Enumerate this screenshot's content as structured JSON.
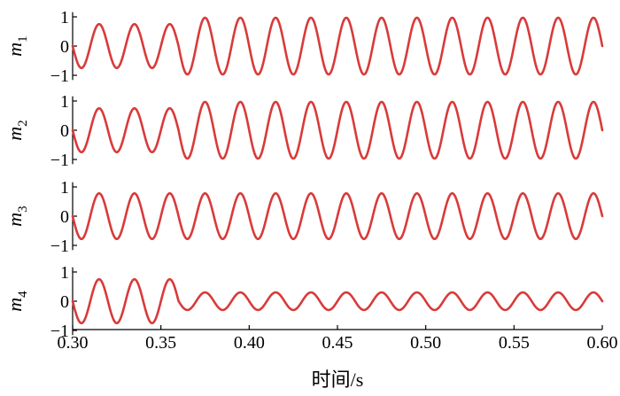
{
  "chart_data": {
    "type": "line",
    "color": "#d93a3a",
    "x_range": [
      0.3,
      0.6
    ],
    "x_ticks": [
      0.3,
      0.35,
      0.4,
      0.45,
      0.5,
      0.55,
      0.6
    ],
    "x_tick_labels": [
      "0.30",
      "0.35",
      "0.40",
      "0.45",
      "0.50",
      "0.55",
      "0.60"
    ],
    "xlabel": "时间/s",
    "y_ticks": [
      1,
      0,
      -1
    ],
    "y_tick_labels": [
      "1",
      "0",
      "−1"
    ],
    "ylim": [
      -1.1,
      1.1
    ],
    "frequency_hz": 50,
    "grid": false,
    "legend": "none",
    "panels": [
      {
        "ylabel_main": "m",
        "ylabel_sub": "1",
        "segments": [
          {
            "from": 0.3,
            "to": 0.36,
            "amplitude": 0.75
          },
          {
            "from": 0.36,
            "to": 0.6,
            "amplitude": 0.97
          }
        ]
      },
      {
        "ylabel_main": "m",
        "ylabel_sub": "2",
        "segments": [
          {
            "from": 0.3,
            "to": 0.36,
            "amplitude": 0.75
          },
          {
            "from": 0.36,
            "to": 0.6,
            "amplitude": 0.97
          }
        ]
      },
      {
        "ylabel_main": "m",
        "ylabel_sub": "3",
        "segments": [
          {
            "from": 0.3,
            "to": 0.6,
            "amplitude": 0.78
          }
        ]
      },
      {
        "ylabel_main": "m",
        "ylabel_sub": "4",
        "segments": [
          {
            "from": 0.3,
            "to": 0.36,
            "amplitude": 0.75
          },
          {
            "from": 0.36,
            "to": 0.6,
            "amplitude": 0.3
          }
        ]
      }
    ]
  }
}
